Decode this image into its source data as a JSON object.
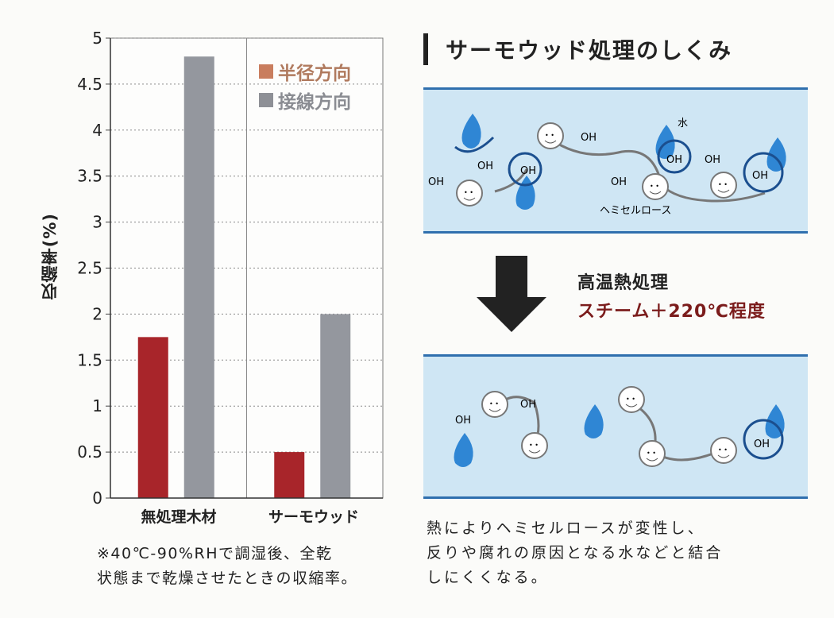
{
  "chart_data": {
    "type": "bar",
    "categories": [
      "無処理木材",
      "サーモウッド"
    ],
    "series": [
      {
        "name": "半径方向",
        "values": [
          1.75,
          0.5
        ],
        "color": "#a8252a"
      },
      {
        "name": "接線方向",
        "values": [
          4.8,
          2.0
        ],
        "color": "#94979e"
      }
    ],
    "ylabel": "収縮率(%)",
    "ylim": [
      0,
      5
    ],
    "yticks": [
      "0",
      "0.5",
      "1",
      "1.5",
      "2",
      "2.5",
      "3",
      "3.5",
      "4",
      "4.5",
      "5"
    ],
    "grid": true,
    "legend_position": "top-right"
  },
  "legend_swatch_colors": [
    "#c97d5e",
    "#8e9096"
  ],
  "footnote": "※40℃-90%RHで調湿後、全乾\n状態まで乾燥させたときの収縮率。",
  "mechanism": {
    "title": "サーモウッド処理のしくみ",
    "before_labels": {
      "oh": "OH",
      "water": "水",
      "hemicellulose": "ヘミセルロース"
    },
    "after_labels": {
      "oh": "OH"
    },
    "process_line1": "高温熱処理",
    "process_line2": "スチーム＋220℃程度",
    "description": "熱によりヘミセルロースが変性し、\n反りや腐れの原因となる水などと結合\nしにくくなる。"
  },
  "colors": {
    "panel_bg": "#cfe6f4",
    "panel_border": "#2f6fae",
    "water": "#2f86d4",
    "process_accent": "#7b1c1c"
  }
}
